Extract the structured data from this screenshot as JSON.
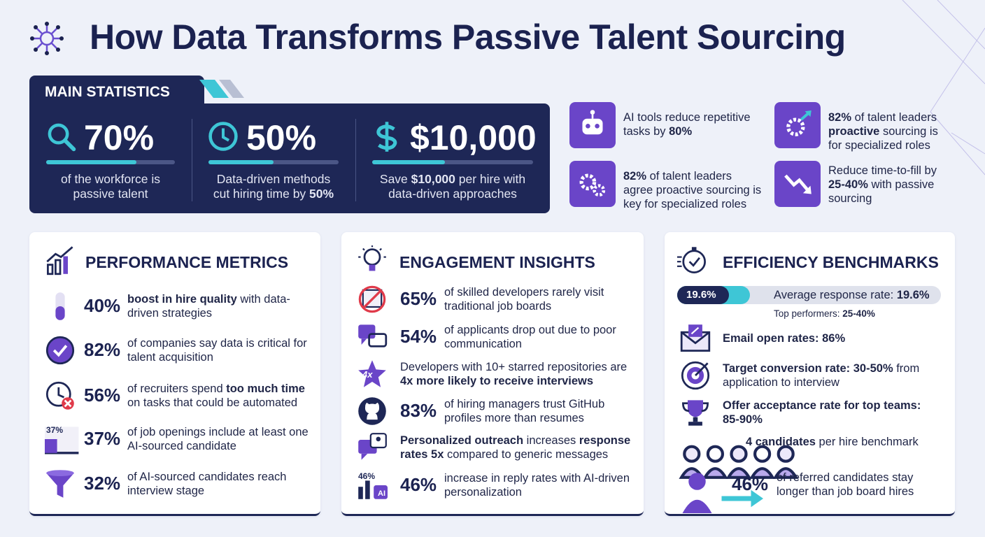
{
  "title": "How Data Transforms Passive Talent Sourcing",
  "main_statistics": {
    "heading": "MAIN STATISTICS",
    "items": [
      {
        "value": 70,
        "label": "70%",
        "text": [
          {
            "t": "of the workforce is passive talent"
          }
        ]
      },
      {
        "value": 50,
        "label": "50%",
        "text": [
          {
            "t": "Data-driven methods cut hiring time by "
          },
          {
            "t": "50%",
            "bold": true
          }
        ]
      },
      {
        "value": 10000,
        "label": "$10,000",
        "text": [
          {
            "t": "Save "
          },
          {
            "t": "$10,000",
            "bold": true
          },
          {
            "t": " per hire with data-driven approaches"
          }
        ]
      }
    ]
  },
  "highlights": [
    {
      "text": [
        {
          "t": "AI tools reduce repetitive tasks by "
        },
        {
          "t": "80%",
          "bold": true
        }
      ]
    },
    {
      "text": [
        {
          "t": "82%",
          "bold": true
        },
        {
          "t": " of talent leaders "
        },
        {
          "t": "proactive",
          "bold": true
        },
        {
          "t": " sourcing is for specialized roles"
        }
      ]
    },
    {
      "text": [
        {
          "t": "82%",
          "bold": true
        },
        {
          "t": " of talent leaders agree proactive sourcing is key for specialized roles"
        }
      ]
    },
    {
      "text": [
        {
          "t": "Reduce time-to-fill by "
        },
        {
          "t": "25-40%",
          "bold": true
        },
        {
          "t": " with passive sourcing"
        }
      ]
    }
  ],
  "performance_metrics": {
    "heading": "PERFORMANCE METRICS",
    "items": [
      {
        "stat": "40%",
        "text": [
          {
            "t": "boost in hire quality",
            "bold": true
          },
          {
            "t": " with data-driven strategies"
          }
        ]
      },
      {
        "stat": "82%",
        "text": [
          {
            "t": "of companies say data is critical for talent acquisition"
          }
        ]
      },
      {
        "stat": "56%",
        "text": [
          {
            "t": "of recruiters spend "
          },
          {
            "t": "too much time",
            "bold": true
          },
          {
            "t": " on tasks that could be automated"
          }
        ]
      },
      {
        "stat": "37%",
        "icon_label": "37%",
        "text": [
          {
            "t": "of job openings include at least one AI-sourced candidate"
          }
        ]
      },
      {
        "stat": "32%",
        "text": [
          {
            "t": "of AI-sourced candidates reach interview stage"
          }
        ]
      }
    ]
  },
  "engagement_insights": {
    "heading": "ENGAGEMENT INSIGHTS",
    "items": [
      {
        "stat": "65%",
        "text": [
          {
            "t": "of skilled developers rarely visit traditional job boards"
          }
        ]
      },
      {
        "stat": "54%",
        "text": [
          {
            "t": "of applicants drop out due to poor communication"
          }
        ]
      },
      {
        "icon_label": "4x",
        "text": [
          {
            "t": "Developers with 10+ starred repositories are "
          },
          {
            "t": "4x more likely to receive interviews",
            "bold": true
          }
        ]
      },
      {
        "stat": "83%",
        "text": [
          {
            "t": "of hiring managers trust GitHub profiles more than resumes"
          }
        ]
      },
      {
        "text": [
          {
            "t": "Personalized outreach",
            "bold": true
          },
          {
            "t": " increases "
          },
          {
            "t": "response rates 5x",
            "bold": true
          },
          {
            "t": " compared to generic messages"
          }
        ]
      },
      {
        "stat": "46%",
        "icon_label": "46%",
        "icon_badge": "AI",
        "text": [
          {
            "t": "increase in reply rates with AI-driven personalization"
          }
        ]
      }
    ]
  },
  "efficiency_benchmarks": {
    "heading": "EFFICIENCY BENCHMARKS",
    "response_rate": {
      "value": 19.6,
      "label": "19.6%",
      "text": [
        {
          "t": "Average response rate: "
        },
        {
          "t": "19.6%",
          "bold": true
        }
      ],
      "note": [
        {
          "t": "Top performers: "
        },
        {
          "t": "25-40%",
          "bold": true
        }
      ]
    },
    "items": [
      {
        "text": [
          {
            "t": "Email open rates: 86%",
            "bold": true
          }
        ]
      },
      {
        "text": [
          {
            "t": "Target conversion rate: 30-50%",
            "bold": true
          },
          {
            "t": " from application to interview"
          }
        ]
      },
      {
        "text": [
          {
            "t": "Offer acceptance rate for top teams: 85-90%",
            "bold": true
          }
        ]
      },
      {
        "text": [
          {
            "t": "4 candidates",
            "bold": true
          },
          {
            "t": " per hire benchmark"
          }
        ]
      },
      {
        "stat": "46%",
        "text": [
          {
            "t": "of referred candidates stay longer than job board hires"
          }
        ]
      }
    ]
  }
}
